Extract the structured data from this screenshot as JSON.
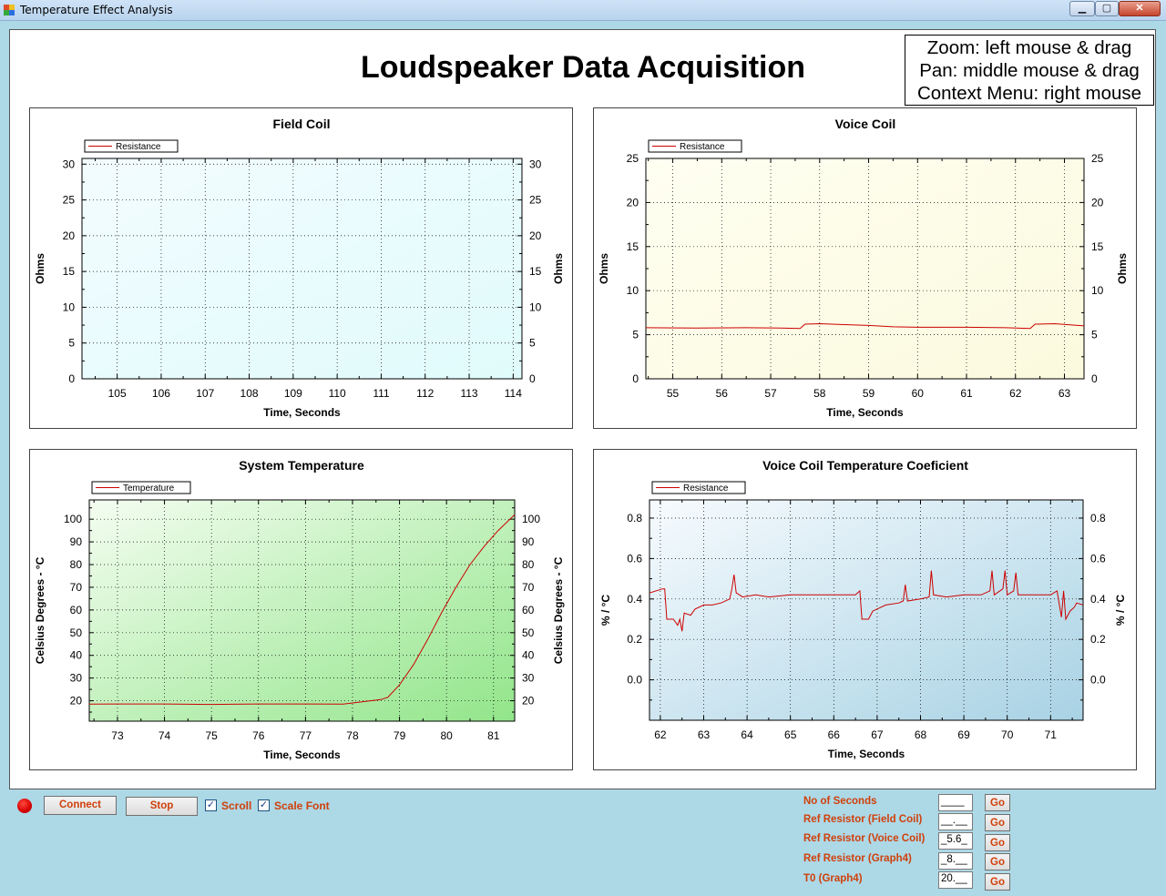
{
  "window": {
    "title": "Temperature Effect Analysis",
    "minimize": "▁",
    "maximize": "▢",
    "close": "✕"
  },
  "page_title": "Loudspeaker Data Acquisition",
  "help": [
    "Zoom: left mouse & drag",
    "Pan: middle mouse & drag",
    "Context Menu: right mouse"
  ],
  "colors": {
    "series": "#cc0000",
    "label_accent": "#d0400b",
    "field_bg_a": "#f3fcff",
    "field_bg_b": "#e0fbfb",
    "voice_bg_a": "#fffff2",
    "voice_bg_b": "#fbf9dd",
    "temp_bg_a": "#f4fdf1",
    "temp_bg_b": "#92e58a",
    "coef_bg_a": "#f7fbfe",
    "coef_bg_b": "#a8d2e4"
  },
  "chart_data": [
    {
      "id": "field",
      "type": "line",
      "title": "Field Coil",
      "xlabel": "Time, Seconds",
      "ylabel": "Ohms",
      "legend": "Resistance",
      "xlim": [
        104.2,
        114.2
      ],
      "ylim": [
        0,
        30.8
      ],
      "xticks": [
        105,
        106,
        107,
        108,
        109,
        110,
        111,
        112,
        113,
        114
      ],
      "yticks": [
        0,
        5,
        10,
        15,
        20,
        25,
        30
      ],
      "minor_x": 0.5,
      "minor_y": 2.5,
      "points": []
    },
    {
      "id": "voice",
      "type": "line",
      "title": "Voice Coil",
      "xlabel": "Time, Seconds",
      "ylabel": "Ohms",
      "legend": "Resistance",
      "xlim": [
        54.45,
        63.4
      ],
      "ylim": [
        0,
        25
      ],
      "xticks": [
        55,
        56,
        57,
        58,
        59,
        60,
        61,
        62,
        63
      ],
      "yticks": [
        0,
        5,
        10,
        15,
        20,
        25
      ],
      "minor_x": 0.5,
      "minor_y": 2.5,
      "points": [
        [
          54.45,
          5.8
        ],
        [
          55.5,
          5.75
        ],
        [
          56.5,
          5.8
        ],
        [
          57.2,
          5.75
        ],
        [
          57.6,
          5.7
        ],
        [
          57.7,
          6.2
        ],
        [
          58,
          6.25
        ],
        [
          58.5,
          6.15
        ],
        [
          59,
          6.05
        ],
        [
          59.5,
          5.9
        ],
        [
          60,
          5.85
        ],
        [
          61,
          5.85
        ],
        [
          61.8,
          5.8
        ],
        [
          62.3,
          5.7
        ],
        [
          62.4,
          6.2
        ],
        [
          62.8,
          6.25
        ],
        [
          63.4,
          6.0
        ]
      ]
    },
    {
      "id": "temp",
      "type": "line",
      "title": "System Temperature",
      "xlabel": "Time, Seconds",
      "ylabel": "Celsius Degrees - °C",
      "legend": "Temperature",
      "xlim": [
        72.4,
        81.45
      ],
      "ylim": [
        11,
        108.5
      ],
      "xticks": [
        73,
        74,
        75,
        76,
        77,
        78,
        79,
        80,
        81
      ],
      "yticks": [
        20,
        30,
        40,
        50,
        60,
        70,
        80,
        90,
        100
      ],
      "minor_x": 0.5,
      "minor_y": 5,
      "points": [
        [
          72.4,
          18.5
        ],
        [
          73,
          18.6
        ],
        [
          74,
          18.6
        ],
        [
          75,
          18.4
        ],
        [
          76,
          18.6
        ],
        [
          77,
          18.6
        ],
        [
          77.8,
          18.5
        ],
        [
          78.2,
          19.5
        ],
        [
          78.6,
          20.5
        ],
        [
          78.75,
          21.5
        ],
        [
          79,
          27
        ],
        [
          79.3,
          36
        ],
        [
          79.6,
          47
        ],
        [
          79.9,
          59
        ],
        [
          80.2,
          70
        ],
        [
          80.5,
          80
        ],
        [
          80.8,
          88
        ],
        [
          81.1,
          95
        ],
        [
          81.45,
          102
        ]
      ]
    },
    {
      "id": "coef",
      "type": "line",
      "title": "Voice Coil Temperature Coeficient",
      "xlabel": "Time, Seconds",
      "ylabel": "% / °C",
      "legend": "Resistance",
      "xlim": [
        61.75,
        71.75
      ],
      "ylim": [
        -0.2,
        0.89
      ],
      "xticks": [
        62,
        63,
        64,
        65,
        66,
        67,
        68,
        69,
        70,
        71
      ],
      "yticks": [
        0.0,
        0.2,
        0.4,
        0.6,
        0.8
      ],
      "ytick_labels": [
        "0.0",
        "0.2",
        "0.4",
        "0.6",
        "0.8"
      ],
      "minor_x": 0.5,
      "minor_y": 0.1,
      "points": [
        [
          61.75,
          0.43
        ],
        [
          62.05,
          0.45
        ],
        [
          62.1,
          0.45
        ],
        [
          62.15,
          0.3
        ],
        [
          62.3,
          0.3
        ],
        [
          62.4,
          0.27
        ],
        [
          62.45,
          0.3
        ],
        [
          62.5,
          0.24
        ],
        [
          62.55,
          0.33
        ],
        [
          62.7,
          0.32
        ],
        [
          62.8,
          0.35
        ],
        [
          63,
          0.37
        ],
        [
          63.2,
          0.37
        ],
        [
          63.4,
          0.38
        ],
        [
          63.6,
          0.4
        ],
        [
          63.65,
          0.45
        ],
        [
          63.7,
          0.52
        ],
        [
          63.75,
          0.43
        ],
        [
          63.9,
          0.41
        ],
        [
          64.2,
          0.42
        ],
        [
          64.5,
          0.41
        ],
        [
          65,
          0.42
        ],
        [
          65.5,
          0.42
        ],
        [
          66,
          0.42
        ],
        [
          66.5,
          0.42
        ],
        [
          66.6,
          0.44
        ],
        [
          66.65,
          0.3
        ],
        [
          66.8,
          0.3
        ],
        [
          66.9,
          0.34
        ],
        [
          67.2,
          0.37
        ],
        [
          67.5,
          0.38
        ],
        [
          67.6,
          0.39
        ],
        [
          67.65,
          0.47
        ],
        [
          67.7,
          0.39
        ],
        [
          68,
          0.4
        ],
        [
          68.2,
          0.41
        ],
        [
          68.25,
          0.54
        ],
        [
          68.3,
          0.42
        ],
        [
          68.6,
          0.41
        ],
        [
          69,
          0.42
        ],
        [
          69.4,
          0.42
        ],
        [
          69.6,
          0.44
        ],
        [
          69.65,
          0.54
        ],
        [
          69.7,
          0.42
        ],
        [
          69.9,
          0.45
        ],
        [
          69.95,
          0.54
        ],
        [
          70,
          0.42
        ],
        [
          70.15,
          0.44
        ],
        [
          70.2,
          0.53
        ],
        [
          70.25,
          0.42
        ],
        [
          70.5,
          0.42
        ],
        [
          70.8,
          0.42
        ],
        [
          71,
          0.42
        ],
        [
          71.15,
          0.44
        ],
        [
          71.25,
          0.31
        ],
        [
          71.3,
          0.44
        ],
        [
          71.35,
          0.3
        ],
        [
          71.45,
          0.34
        ],
        [
          71.55,
          0.36
        ],
        [
          71.6,
          0.38
        ],
        [
          71.75,
          0.37
        ]
      ]
    }
  ],
  "controls": {
    "connect": "Connect",
    "stop": "Stop",
    "scroll": "Scroll",
    "scale_font": "Scale Font",
    "check": "✓"
  },
  "params": [
    {
      "label": "No of Seconds",
      "value": "____",
      "go": "Go"
    },
    {
      "label": "Ref Resistor (Field Coil)",
      "value": "__.__",
      "go": "Go"
    },
    {
      "label": "Ref Resistor (Voice Coil)",
      "value": "_5.6_",
      "go": "Go"
    },
    {
      "label": "Ref Resistor (Graph4)",
      "value": "_8.__",
      "go": "Go"
    },
    {
      "label": "T0 (Graph4)",
      "value": "20.__",
      "go": "Go"
    }
  ]
}
